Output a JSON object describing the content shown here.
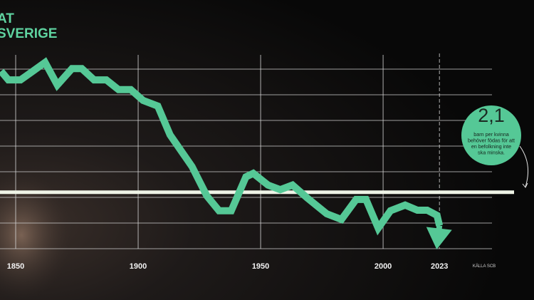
{
  "chart_data": {
    "type": "line",
    "title_lines": [
      "AT",
      "SVERIGE"
    ],
    "x": [
      1844,
      1847,
      1852,
      1857,
      1862,
      1867,
      1873,
      1877,
      1882,
      1887,
      1892,
      1897,
      1902,
      1908,
      1913,
      1922,
      1928,
      1933,
      1938,
      1944,
      1947,
      1953,
      1958,
      1963,
      1969,
      1977,
      1983,
      1989,
      1993,
      1998,
      2003,
      2009,
      2014,
      2018,
      2022,
      2023
    ],
    "series": [
      {
        "color": "#55c896",
        "values": [
          4.46,
          4.29,
          4.29,
          4.46,
          4.63,
          4.19,
          4.51,
          4.51,
          4.29,
          4.29,
          4.1,
          4.1,
          3.89,
          3.78,
          3.22,
          2.6,
          2.03,
          1.74,
          1.74,
          2.4,
          2.47,
          2.24,
          2.15,
          2.24,
          1.99,
          1.68,
          1.57,
          1.96,
          1.96,
          1.4,
          1.74,
          1.85,
          1.75,
          1.75,
          1.65,
          1.45
        ]
      }
    ],
    "xlim": [
      1843.6,
      2061.6
    ],
    "xticks": [
      1850,
      1900,
      1950,
      2000,
      2023
    ],
    "ylim": [
      1,
      4.5
    ],
    "yticks": [
      1,
      1.5,
      2,
      2.5,
      3,
      3.5,
      4,
      4.5
    ],
    "grid": true,
    "reference_line": {
      "value": 2.1,
      "label": "2,1",
      "text": [
        "barn per kvinna",
        "behöver födas för att",
        "en befolkning inte",
        "ska minska."
      ]
    },
    "source": "KÄLLA SCB"
  }
}
